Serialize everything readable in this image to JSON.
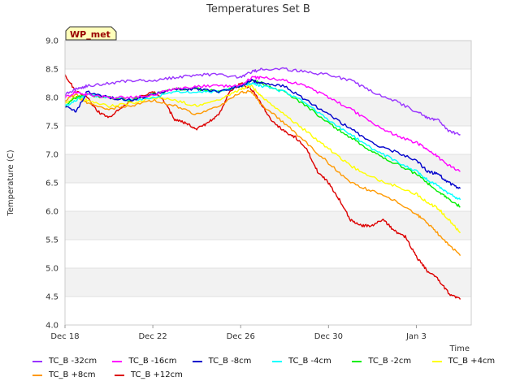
{
  "chart_data": {
    "type": "line",
    "title": "Temperatures Set B",
    "xlabel": "Time",
    "ylabel": "Temperature (C)",
    "annotation": "WP_met",
    "ylim": [
      4.0,
      9.0
    ],
    "xlim": [
      0,
      18.5
    ],
    "x_tick_values": [
      0,
      4,
      8,
      12,
      16
    ],
    "x_tick_labels": [
      "Dec 18",
      "Dec 22",
      "Dec 26",
      "Dec 30",
      "Jan 3"
    ],
    "y_ticks": [
      4.0,
      4.5,
      5.0,
      5.5,
      6.0,
      6.5,
      7.0,
      7.5,
      8.0,
      8.5,
      9.0
    ],
    "y_tick_labels": [
      "4.0",
      "4.5",
      "5.0",
      "5.5",
      "6.0",
      "6.5",
      "7.0",
      "7.5",
      "8.0",
      "8.5",
      "9.0"
    ],
    "grid": true,
    "legend_position": "bottom",
    "series": [
      {
        "name": "TC_B -32cm",
        "color": "#9933ff",
        "x": [
          0,
          0.5,
          1,
          2,
          3,
          4,
          5,
          6,
          7,
          8,
          8.5,
          9,
          10,
          11,
          12,
          13,
          14,
          15,
          16,
          16.5,
          17,
          17.5,
          18
        ],
        "y": [
          8.05,
          8.15,
          8.2,
          8.25,
          8.3,
          8.3,
          8.35,
          8.4,
          8.4,
          8.35,
          8.45,
          8.5,
          8.5,
          8.45,
          8.4,
          8.3,
          8.1,
          7.95,
          7.75,
          7.65,
          7.6,
          7.4,
          7.35
        ]
      },
      {
        "name": "TC_B -16cm",
        "color": "#ff00ff",
        "x": [
          0,
          0.5,
          1,
          2,
          3,
          4,
          5,
          6,
          7,
          8,
          8.5,
          9,
          10,
          11,
          12,
          13,
          14,
          15,
          16,
          16.5,
          17,
          17.5,
          18
        ],
        "y": [
          8.0,
          8.1,
          8.05,
          8.0,
          8.0,
          8.05,
          8.15,
          8.2,
          8.2,
          8.2,
          8.35,
          8.35,
          8.3,
          8.2,
          8.0,
          7.8,
          7.55,
          7.35,
          7.2,
          7.1,
          6.95,
          6.8,
          6.7
        ]
      },
      {
        "name": "TC_B -8cm",
        "color": "#0000cc",
        "x": [
          0,
          0.5,
          1,
          2,
          3,
          4,
          5,
          6,
          7,
          8,
          8.5,
          9,
          10,
          11,
          12,
          13,
          14,
          15,
          16,
          16.5,
          17,
          17.5,
          18
        ],
        "y": [
          7.85,
          7.75,
          8.1,
          8.0,
          7.95,
          8.05,
          8.15,
          8.15,
          8.1,
          8.2,
          8.3,
          8.25,
          8.2,
          7.95,
          7.7,
          7.45,
          7.2,
          7.05,
          6.9,
          6.7,
          6.65,
          6.5,
          6.4
        ]
      },
      {
        "name": "TC_B -4cm",
        "color": "#00ffff",
        "x": [
          0,
          0.5,
          1,
          2,
          3,
          4,
          5,
          6,
          7,
          8,
          8.5,
          9,
          10,
          11,
          12,
          13,
          14,
          15,
          16,
          16.5,
          17,
          17.5,
          18
        ],
        "y": [
          7.85,
          7.95,
          8.05,
          8.0,
          7.95,
          8.0,
          8.1,
          8.1,
          8.1,
          8.2,
          8.25,
          8.2,
          8.1,
          7.9,
          7.6,
          7.35,
          7.1,
          6.9,
          6.7,
          6.55,
          6.45,
          6.3,
          6.2
        ]
      },
      {
        "name": "TC_B -2cm",
        "color": "#00ee00",
        "x": [
          0,
          0.5,
          1,
          2,
          3,
          4,
          5,
          6,
          7,
          8,
          8.5,
          9,
          10,
          11,
          12,
          13,
          14,
          15,
          16,
          16.5,
          17,
          17.5,
          18
        ],
        "y": [
          7.85,
          8.0,
          8.05,
          8.0,
          7.95,
          8.05,
          8.15,
          8.15,
          8.1,
          8.2,
          8.3,
          8.25,
          8.1,
          7.85,
          7.55,
          7.3,
          7.05,
          6.85,
          6.65,
          6.5,
          6.35,
          6.2,
          6.08
        ]
      },
      {
        "name": "TC_B +4cm",
        "color": "#ffff00",
        "x": [
          0,
          0.5,
          1,
          2,
          3,
          4,
          5,
          6,
          7,
          8,
          8.5,
          9,
          10,
          11,
          12,
          13,
          14,
          15,
          16,
          16.5,
          17,
          17.5,
          18
        ],
        "y": [
          7.9,
          8.0,
          7.95,
          7.85,
          7.9,
          8.0,
          7.95,
          7.85,
          7.95,
          8.15,
          8.2,
          8.0,
          7.7,
          7.4,
          7.1,
          6.8,
          6.6,
          6.45,
          6.3,
          6.15,
          6.05,
          5.85,
          5.62
        ]
      },
      {
        "name": "TC_B +8cm",
        "color": "#ff9900",
        "x": [
          0,
          0.5,
          1,
          2,
          3,
          4,
          5,
          6,
          7,
          8,
          8.5,
          9,
          10,
          11,
          12,
          13,
          14,
          15,
          16,
          16.5,
          17,
          17.5,
          18
        ],
        "y": [
          7.95,
          8.05,
          7.9,
          7.8,
          7.85,
          7.95,
          7.85,
          7.7,
          7.85,
          8.1,
          8.1,
          7.85,
          7.55,
          7.2,
          6.85,
          6.5,
          6.35,
          6.2,
          5.95,
          5.8,
          5.6,
          5.4,
          5.22
        ]
      },
      {
        "name": "TC_B +12cm",
        "color": "#dd0000",
        "x": [
          0,
          0.5,
          1,
          1.5,
          2,
          2.5,
          3,
          4,
          4.5,
          5,
          5.5,
          6,
          6.5,
          7,
          7.5,
          8,
          8.5,
          9,
          9.5,
          10,
          10.5,
          11,
          11.5,
          12,
          12.5,
          13,
          13.5,
          14,
          14.5,
          15,
          15.5,
          16,
          16.5,
          17,
          17.5,
          18
        ],
        "y": [
          8.4,
          8.1,
          8.0,
          7.75,
          7.65,
          7.8,
          7.95,
          8.1,
          7.95,
          7.6,
          7.55,
          7.45,
          7.55,
          7.7,
          8.1,
          8.25,
          8.15,
          7.85,
          7.55,
          7.4,
          7.3,
          7.1,
          6.7,
          6.5,
          6.2,
          5.85,
          5.75,
          5.75,
          5.85,
          5.65,
          5.55,
          5.2,
          4.95,
          4.8,
          4.55,
          4.45
        ]
      }
    ]
  }
}
